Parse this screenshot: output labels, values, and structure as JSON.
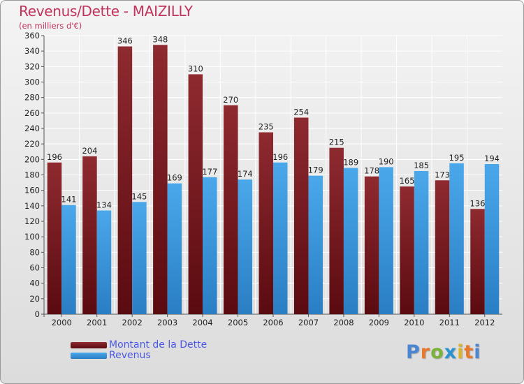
{
  "header": {
    "title": "Revenus/Dette - MAIZILLY",
    "subtitle": "(en milliers d'€)"
  },
  "logo": {
    "text": "Proxiti",
    "letter_colors": [
      "#4a86d4",
      "#e8782c",
      "#7cb23a",
      "#2b93d1",
      "#d9b52b",
      "#e8782c",
      "#4a86d4"
    ]
  },
  "colors": {
    "dette": "#7a1a1f",
    "revenus": "#3f9be0",
    "title": "#c2335b",
    "legend_text": "#4a58e6"
  },
  "chart_data": {
    "type": "bar",
    "title": "Revenus/Dette - MAIZILLY",
    "subtitle": "(en milliers d'€)",
    "categories": [
      "2000",
      "2001",
      "2002",
      "2003",
      "2004",
      "2005",
      "2006",
      "2007",
      "2008",
      "2009",
      "2010",
      "2011",
      "2012"
    ],
    "series": [
      {
        "name": "Montant de la Dette",
        "values": [
          196,
          204,
          346,
          348,
          310,
          270,
          235,
          254,
          215,
          178,
          165,
          173,
          136
        ]
      },
      {
        "name": "Revenus",
        "values": [
          141,
          134,
          145,
          169,
          177,
          174,
          196,
          179,
          189,
          190,
          185,
          195,
          194
        ]
      }
    ],
    "ylim": [
      0,
      360
    ],
    "yticks": [
      0,
      20,
      40,
      60,
      80,
      100,
      120,
      140,
      160,
      180,
      200,
      220,
      240,
      260,
      280,
      300,
      320,
      340,
      360
    ],
    "grid": true,
    "data_labels": true,
    "legend_position": "bottom-left"
  }
}
